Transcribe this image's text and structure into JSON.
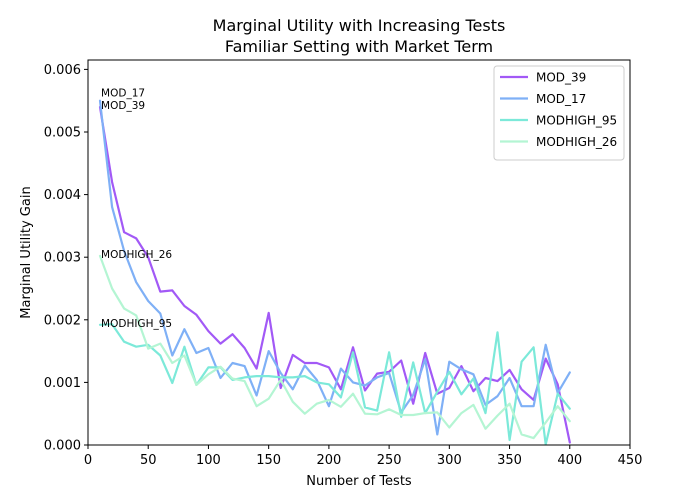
{
  "chart_data": {
    "type": "line",
    "title": [
      "Marginal Utility with Increasing Tests",
      "Familiar Setting with Market Term"
    ],
    "xlabel": "Number of Tests",
    "ylabel": "Marginal Utility Gain",
    "xlim": [
      0,
      450
    ],
    "ylim": [
      0,
      0.00615
    ],
    "xticks": [
      0,
      50,
      100,
      150,
      200,
      250,
      300,
      350,
      400,
      450
    ],
    "yticks": [
      0.0,
      0.001,
      0.002,
      0.003,
      0.004,
      0.005,
      0.006
    ],
    "ytick_labels": [
      "0.000",
      "0.001",
      "0.002",
      "0.003",
      "0.004",
      "0.005",
      "0.006"
    ],
    "grid": false,
    "legend_position": "top-right",
    "x": [
      10,
      20,
      30,
      40,
      50,
      60,
      70,
      80,
      90,
      100,
      110,
      120,
      130,
      140,
      150,
      160,
      170,
      180,
      190,
      200,
      210,
      220,
      230,
      240,
      250,
      260,
      270,
      280,
      290,
      300,
      310,
      320,
      330,
      340,
      350,
      360,
      370,
      380,
      390,
      400
    ],
    "series": [
      {
        "name": "MOD_39",
        "color": "#a259f6",
        "values": [
          0.0054,
          0.0042,
          0.0034,
          0.0033,
          0.003,
          0.00245,
          0.00247,
          0.00222,
          0.00208,
          0.00182,
          0.00162,
          0.00177,
          0.00155,
          0.00122,
          0.00211,
          0.00091,
          0.00144,
          0.00131,
          0.00131,
          0.00124,
          0.00089,
          0.00156,
          0.00087,
          0.00114,
          0.00117,
          0.00135,
          0.00066,
          0.00147,
          0.00082,
          0.00091,
          0.00126,
          0.00086,
          0.00107,
          0.00102,
          0.0012,
          0.00089,
          0.00072,
          0.00138,
          0.00097,
          4e-05
        ]
      },
      {
        "name": "MOD_17",
        "color": "#7fb0f6",
        "values": [
          0.0055,
          0.0038,
          0.0031,
          0.0026,
          0.0023,
          0.0021,
          0.00143,
          0.00185,
          0.00147,
          0.00155,
          0.00107,
          0.00131,
          0.00126,
          0.00079,
          0.0015,
          0.00115,
          0.00089,
          0.00127,
          0.00104,
          0.00062,
          0.00122,
          0.001,
          0.00095,
          0.00108,
          0.00115,
          0.00052,
          0.0008,
          0.00137,
          0.00017,
          0.00133,
          0.00121,
          0.00113,
          0.00064,
          0.00078,
          0.00107,
          0.00062,
          0.00062,
          0.0016,
          0.00083,
          0.00116
        ]
      },
      {
        "name": "MODHIGH_95",
        "color": "#7ce9d9",
        "values": [
          0.00192,
          0.00193,
          0.00165,
          0.00157,
          0.0016,
          0.00143,
          0.00099,
          0.00157,
          0.00096,
          0.00124,
          0.00124,
          0.00104,
          0.00108,
          0.0011,
          0.0011,
          0.00108,
          0.00108,
          0.0011,
          0.001,
          0.00097,
          0.00076,
          0.00148,
          0.0006,
          0.00055,
          0.00148,
          0.00045,
          0.00132,
          0.00051,
          0.00085,
          0.00117,
          0.00081,
          0.00106,
          0.00051,
          0.0018,
          8e-05,
          0.00133,
          0.00156,
          1e-05,
          0.00082,
          0.00058
        ]
      },
      {
        "name": "MODHIGH_26",
        "color": "#b4f5d3",
        "values": [
          0.00302,
          0.0025,
          0.00218,
          0.00207,
          0.00154,
          0.00162,
          0.00131,
          0.00143,
          0.00096,
          0.00113,
          0.00125,
          0.00106,
          0.00102,
          0.00062,
          0.00074,
          0.00104,
          0.00069,
          0.0005,
          0.00066,
          0.00072,
          0.00061,
          0.00082,
          0.0005,
          0.00049,
          0.00057,
          0.00048,
          0.00048,
          0.00051,
          0.00052,
          0.00028,
          0.00051,
          0.00064,
          0.00026,
          0.00047,
          0.00066,
          0.00017,
          0.00011,
          0.00036,
          0.00062,
          0.00038
        ]
      }
    ],
    "annotations": [
      {
        "text": "MOD_17",
        "x": 10,
        "y": 0.00563
      },
      {
        "text": "MOD_39",
        "x": 10,
        "y": 0.00543
      },
      {
        "text": "MODHIGH_26",
        "x": 10,
        "y": 0.00305
      },
      {
        "text": "MODHIGH_95",
        "x": 10,
        "y": 0.00195
      }
    ]
  }
}
